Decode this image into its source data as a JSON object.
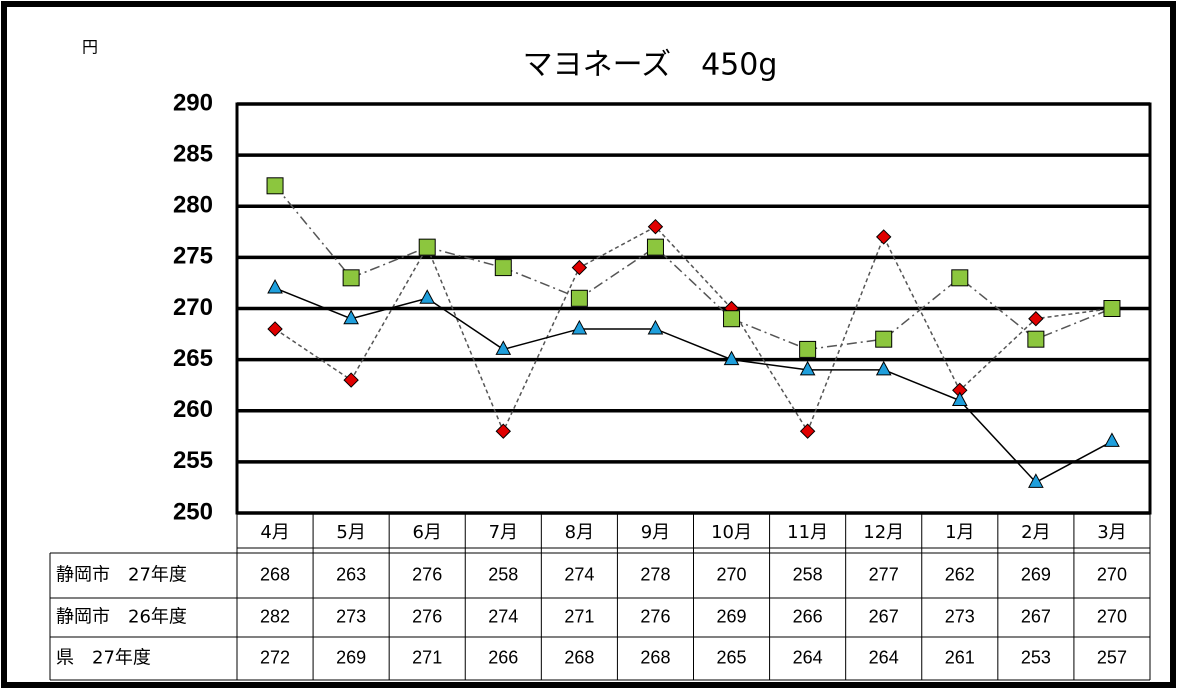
{
  "chart_data": {
    "type": "line",
    "title": "マヨネーズ　450g",
    "ylabel": "円",
    "categories": [
      "4月",
      "5月",
      "6月",
      "7月",
      "8月",
      "9月",
      "10月",
      "11月",
      "12月",
      "1月",
      "2月",
      "3月"
    ],
    "series": [
      {
        "name": "静岡市　27年度",
        "color": "#e00000",
        "marker": "diamond",
        "dash": "4,3",
        "values": [
          268,
          263,
          276,
          258,
          274,
          278,
          270,
          258,
          277,
          262,
          269,
          270
        ]
      },
      {
        "name": "静岡市　26年度",
        "color": "#8cc63e",
        "marker": "square",
        "dash": "10,4,2,4",
        "values": [
          282,
          273,
          276,
          274,
          271,
          276,
          269,
          266,
          267,
          273,
          267,
          270
        ]
      },
      {
        "name": "県　27年度",
        "color": "#1f9fdc",
        "marker": "triangle",
        "dash": "none",
        "values": [
          272,
          269,
          271,
          266,
          268,
          268,
          265,
          264,
          264,
          261,
          253,
          257
        ]
      }
    ],
    "ylim": [
      250,
      290
    ],
    "yticks": [
      250,
      255,
      260,
      265,
      270,
      275,
      280,
      285,
      290
    ],
    "grid": true
  }
}
